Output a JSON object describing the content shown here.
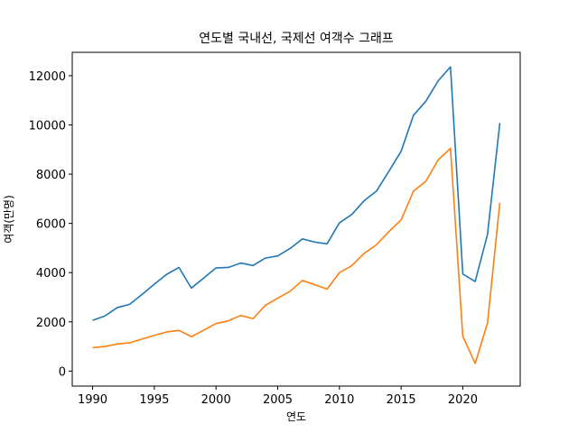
{
  "chart_data": {
    "type": "line",
    "title": "연도별 국내선, 국제선 여객수 그래프",
    "xlabel": "연도",
    "ylabel": "여객(만명)",
    "xlim": [
      1988.35,
      2024.65
    ],
    "ylim": [
      -610,
      12950
    ],
    "xticks": [
      1990,
      1995,
      2000,
      2005,
      2010,
      2015,
      2020
    ],
    "yticks": [
      0,
      2000,
      4000,
      6000,
      8000,
      10000,
      12000
    ],
    "grid": false,
    "legend": "none",
    "colors": [
      "#1f77b4",
      "#ff7f0e"
    ],
    "x": [
      1990,
      1991,
      1992,
      1993,
      1994,
      1995,
      1996,
      1997,
      1998,
      1999,
      2000,
      2001,
      2002,
      2003,
      2004,
      2005,
      2006,
      2007,
      2008,
      2009,
      2010,
      2011,
      2012,
      2013,
      2014,
      2015,
      2016,
      2017,
      2018,
      2019,
      2020,
      2021,
      2022,
      2023
    ],
    "series": [
      {
        "values": [
          2060,
          2240,
          2580,
          2710,
          3110,
          3530,
          3930,
          4210,
          3370,
          3780,
          4190,
          4210,
          4390,
          4290,
          4590,
          4680,
          4980,
          5370,
          5240,
          5170,
          6020,
          6360,
          6920,
          7310,
          8110,
          8930,
          10390,
          10960,
          11790,
          12360,
          3940,
          3640,
          5550,
          10080
        ]
      },
      {
        "values": [
          950,
          1000,
          1100,
          1150,
          1300,
          1450,
          1590,
          1650,
          1400,
          1660,
          1930,
          2040,
          2260,
          2130,
          2670,
          2960,
          3240,
          3680,
          3510,
          3330,
          4000,
          4280,
          4780,
          5130,
          5660,
          6140,
          7310,
          7710,
          8580,
          9050,
          1410,
          310,
          1950,
          6840
        ]
      }
    ]
  }
}
